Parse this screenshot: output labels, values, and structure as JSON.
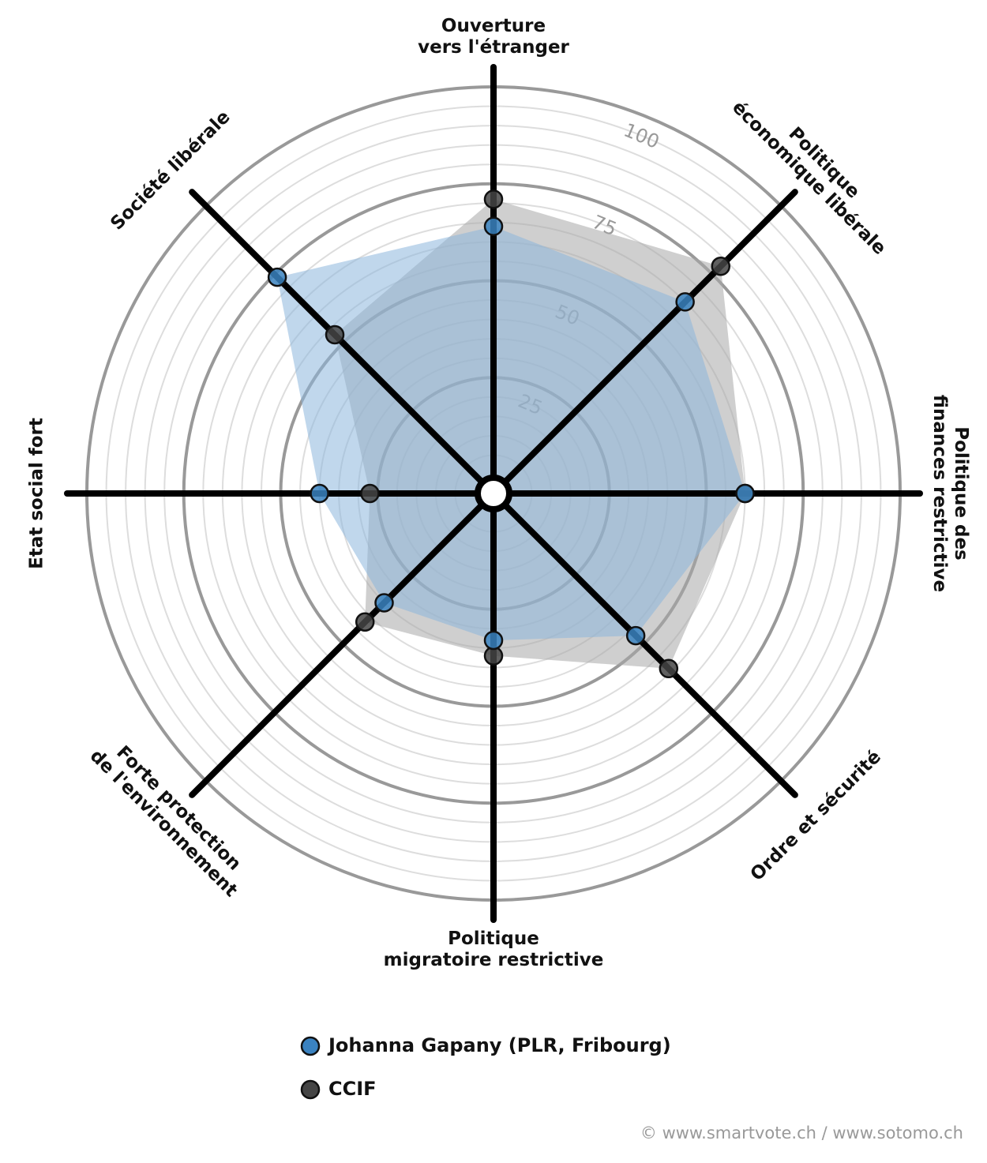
{
  "chart_data": {
    "type": "radar",
    "categories": [
      [
        "Ouverture",
        "vers l'étranger"
      ],
      [
        "Politique",
        "économique libérale"
      ],
      [
        "Politique des",
        "finances restrictive"
      ],
      [
        "Ordre et sécurité"
      ],
      [
        "Politique",
        "migratoire restrictive"
      ],
      [
        "Forte protection",
        "de l'environnement"
      ],
      [
        "Etat social fort"
      ],
      [
        "Société libérale"
      ]
    ],
    "series": [
      {
        "name": "CCIF",
        "color": "#454545",
        "fill": "#a8a8a8",
        "values": [
          71,
          78,
          60,
          59,
          37,
          42,
          27,
          53
        ]
      },
      {
        "name": "Johanna Gapany (PLR, Fribourg)",
        "color": "#3a82c0",
        "fill": "#8db7dc",
        "values": [
          64,
          65,
          60,
          47,
          33,
          35,
          40,
          74
        ]
      }
    ],
    "rlim": [
      0,
      100
    ],
    "rticks": [
      25,
      50,
      75,
      100
    ],
    "credit": "© www.smartvote.ch / www.sotomo.ch"
  }
}
